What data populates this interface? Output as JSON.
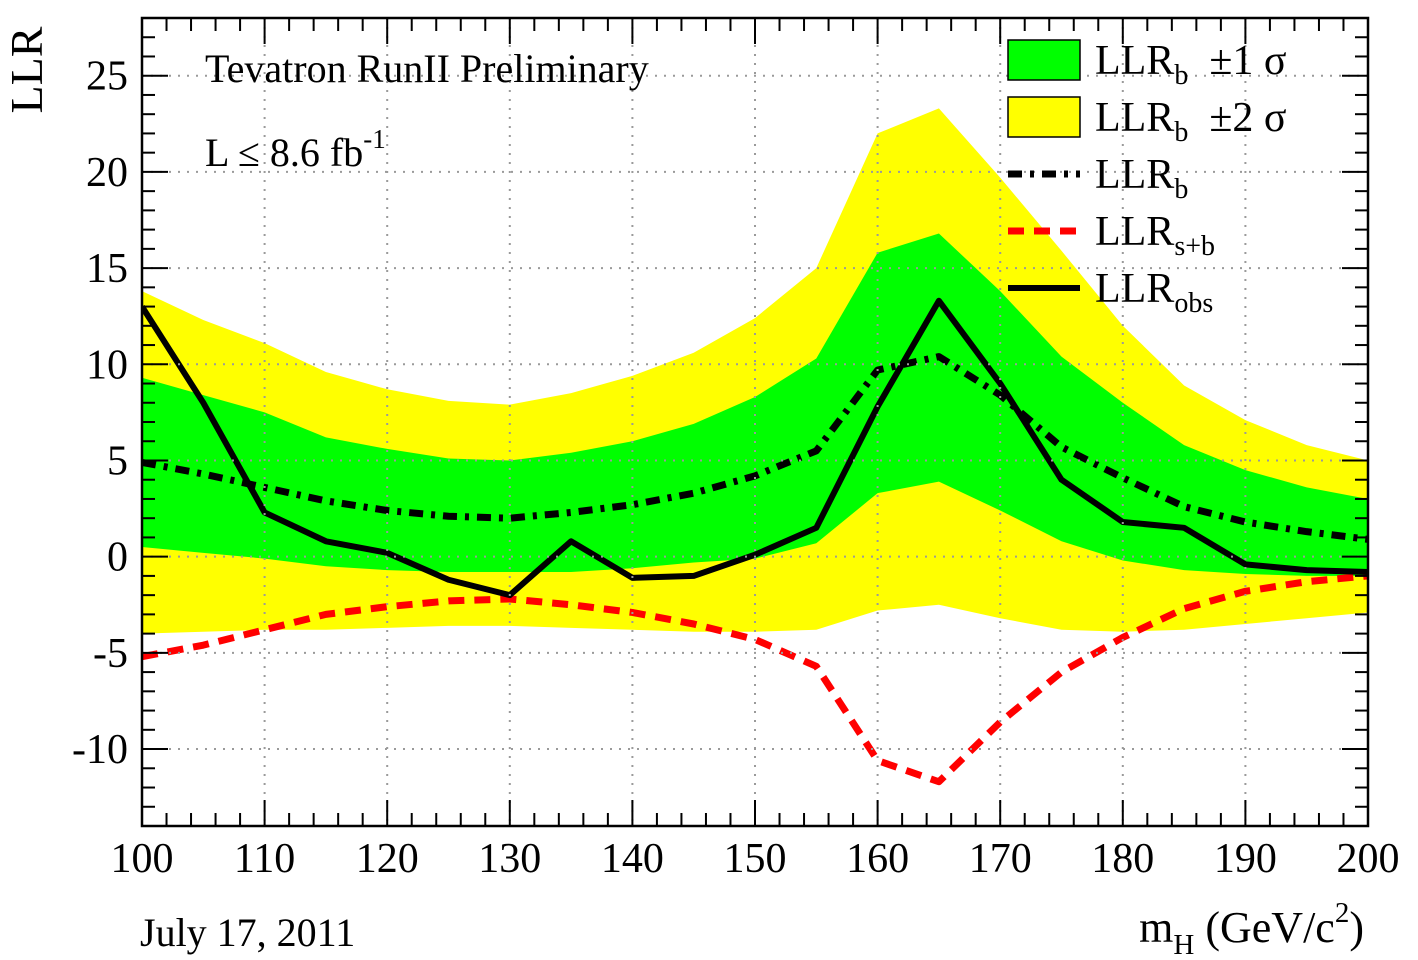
{
  "chart_data": {
    "type": "line",
    "title": "",
    "annotation_main": "Tevatron RunII Preliminary",
    "annotation_lumi": {
      "text": "L ≤ 8.6 fb",
      "sup": "-1"
    },
    "date": "July 17, 2011",
    "ylabel": "LLR",
    "xlabel": {
      "m": "m",
      "sub": "H",
      "unit": " (GeV/c",
      "sup": "2",
      "close": ")"
    },
    "xlim": [
      100,
      200
    ],
    "ylim": [
      -14,
      28
    ],
    "xticks": [
      "100",
      "110",
      "120",
      "130",
      "140",
      "150",
      "160",
      "170",
      "180",
      "190",
      "200"
    ],
    "yticks": [
      "-10",
      "-5",
      "0",
      "5",
      "10",
      "15",
      "20",
      "25"
    ],
    "grid": true,
    "legend_position": "top-right",
    "legend": [
      {
        "main": "LLR",
        "sub": "b",
        "extra": "  ±1 σ",
        "style": "box",
        "color": "#00ff00"
      },
      {
        "main": "LLR",
        "sub": "b",
        "extra": "  ±2 σ",
        "style": "box",
        "color": "#ffff00"
      },
      {
        "main": "LLR",
        "sub": "b",
        "extra": "",
        "style": "dashdot",
        "color": "#000000"
      },
      {
        "main": "LLR",
        "sub": "s+b",
        "extra": "",
        "style": "dash",
        "color": "#ff0000"
      },
      {
        "main": "LLR",
        "sub": "obs",
        "extra": "",
        "style": "solid",
        "color": "#000000"
      }
    ],
    "x": [
      100,
      105,
      110,
      115,
      120,
      125,
      130,
      135,
      140,
      145,
      150,
      155,
      160,
      165,
      170,
      175,
      180,
      185,
      190,
      195,
      200
    ],
    "bands": [
      {
        "sigma": 2,
        "color": "#ffff00",
        "upper": [
          13.8,
          12.3,
          11.1,
          9.6,
          8.7,
          8.1,
          7.9,
          8.5,
          9.4,
          10.6,
          12.4,
          15.0,
          22.0,
          23.3,
          19.7,
          15.9,
          12.0,
          8.9,
          7.1,
          5.8,
          5.0
        ],
        "lower": [
          -4.0,
          -3.9,
          -3.8,
          -3.8,
          -3.7,
          -3.6,
          -3.6,
          -3.7,
          -3.8,
          -3.9,
          -3.9,
          -3.8,
          -2.8,
          -2.5,
          -3.2,
          -3.8,
          -3.9,
          -3.8,
          -3.5,
          -3.2,
          -2.9
        ]
      },
      {
        "sigma": 1,
        "color": "#00ff00",
        "upper": [
          9.3,
          8.4,
          7.5,
          6.2,
          5.6,
          5.1,
          5.0,
          5.4,
          6.0,
          6.9,
          8.3,
          10.3,
          15.8,
          16.8,
          13.8,
          10.4,
          8.0,
          5.8,
          4.5,
          3.6,
          3.0
        ],
        "lower": [
          0.5,
          0.2,
          -0.1,
          -0.5,
          -0.7,
          -0.8,
          -0.8,
          -0.8,
          -0.6,
          -0.3,
          -0.1,
          0.7,
          3.3,
          3.9,
          2.4,
          0.8,
          -0.2,
          -0.7,
          -0.9,
          -1.0,
          -1.0
        ]
      }
    ],
    "series": [
      {
        "name": "LLR_b",
        "style": "dashdot",
        "color": "#000000",
        "values": [
          4.9,
          4.3,
          3.6,
          2.9,
          2.4,
          2.1,
          2.0,
          2.3,
          2.7,
          3.3,
          4.2,
          5.5,
          9.7,
          10.4,
          8.4,
          5.7,
          4.1,
          2.6,
          1.8,
          1.3,
          0.9
        ]
      },
      {
        "name": "LLR_s+b",
        "style": "dash",
        "color": "#ff0000",
        "values": [
          -5.2,
          -4.6,
          -3.8,
          -3.0,
          -2.6,
          -2.3,
          -2.2,
          -2.5,
          -2.9,
          -3.5,
          -4.3,
          -5.7,
          -10.6,
          -11.7,
          -8.6,
          -6.0,
          -4.2,
          -2.7,
          -1.8,
          -1.3,
          -1.0
        ]
      },
      {
        "name": "LLR_obs",
        "style": "solid",
        "color": "#000000",
        "values": [
          13.0,
          8.0,
          2.3,
          0.8,
          0.2,
          -1.2,
          -2.0,
          0.8,
          -1.1,
          -1.0,
          0.1,
          1.5,
          7.8,
          13.3,
          9.0,
          4.0,
          1.8,
          1.5,
          -0.4,
          -0.7,
          -0.8
        ]
      }
    ]
  }
}
